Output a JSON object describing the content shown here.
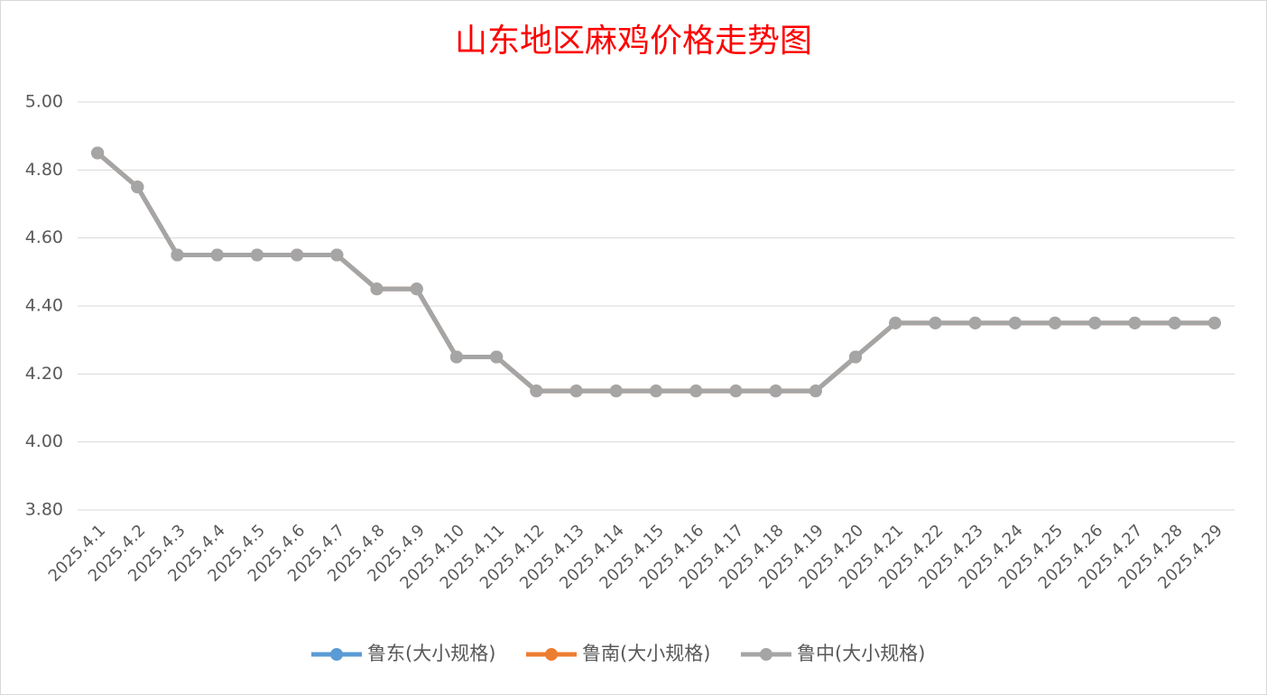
{
  "chart_data": {
    "type": "line",
    "title": "山东地区麻鸡价格走势图",
    "categories": [
      "2025.4.1",
      "2025.4.2",
      "2025.4.3",
      "2025.4.4",
      "2025.4.5",
      "2025.4.6",
      "2025.4.7",
      "2025.4.8",
      "2025.4.9",
      "2025.4.10",
      "2025.4.11",
      "2025.4.12",
      "2025.4.13",
      "2025.4.14",
      "2025.4.15",
      "2025.4.16",
      "2025.4.17",
      "2025.4.18",
      "2025.4.19",
      "2025.4.20",
      "2025.4.21",
      "2025.4.22",
      "2025.4.23",
      "2025.4.24",
      "2025.4.25",
      "2025.4.26",
      "2025.4.27",
      "2025.4.28",
      "2025.4.29"
    ],
    "series": [
      {
        "name": "鲁东(大小规格)",
        "color": "#5b9bd5",
        "values": [
          4.85,
          4.75,
          4.55,
          4.55,
          4.55,
          4.55,
          4.55,
          4.45,
          4.45,
          4.25,
          4.25,
          4.15,
          4.15,
          4.15,
          4.15,
          4.15,
          4.15,
          4.15,
          4.15,
          4.25,
          4.35,
          4.35,
          4.35,
          4.35,
          4.35,
          4.35,
          4.35,
          4.35,
          4.35
        ]
      },
      {
        "name": "鲁南(大小规格)",
        "color": "#ed7d31",
        "values": [
          4.85,
          4.75,
          4.55,
          4.55,
          4.55,
          4.55,
          4.55,
          4.45,
          4.45,
          4.25,
          4.25,
          4.15,
          4.15,
          4.15,
          4.15,
          4.15,
          4.15,
          4.15,
          4.15,
          4.25,
          4.35,
          4.35,
          4.35,
          4.35,
          4.35,
          4.35,
          4.35,
          4.35,
          4.35
        ]
      },
      {
        "name": "鲁中(大小规格)",
        "color": "#a5a5a5",
        "values": [
          4.85,
          4.75,
          4.55,
          4.55,
          4.55,
          4.55,
          4.55,
          4.45,
          4.45,
          4.25,
          4.25,
          4.15,
          4.15,
          4.15,
          4.15,
          4.15,
          4.15,
          4.15,
          4.15,
          4.25,
          4.35,
          4.35,
          4.35,
          4.35,
          4.35,
          4.35,
          4.35,
          4.35,
          4.35
        ]
      }
    ],
    "ylim": [
      3.8,
      5.0
    ],
    "yticks": [
      {
        "value": 3.8,
        "label": "3.80"
      },
      {
        "value": 4.0,
        "label": "4.00"
      },
      {
        "value": 4.2,
        "label": "4.20"
      },
      {
        "value": 4.4,
        "label": "4.40"
      },
      {
        "value": 4.6,
        "label": "4.60"
      },
      {
        "value": 4.8,
        "label": "4.80"
      },
      {
        "value": 5.0,
        "label": "5.00"
      }
    ],
    "grid": true,
    "legend": "bottom"
  }
}
